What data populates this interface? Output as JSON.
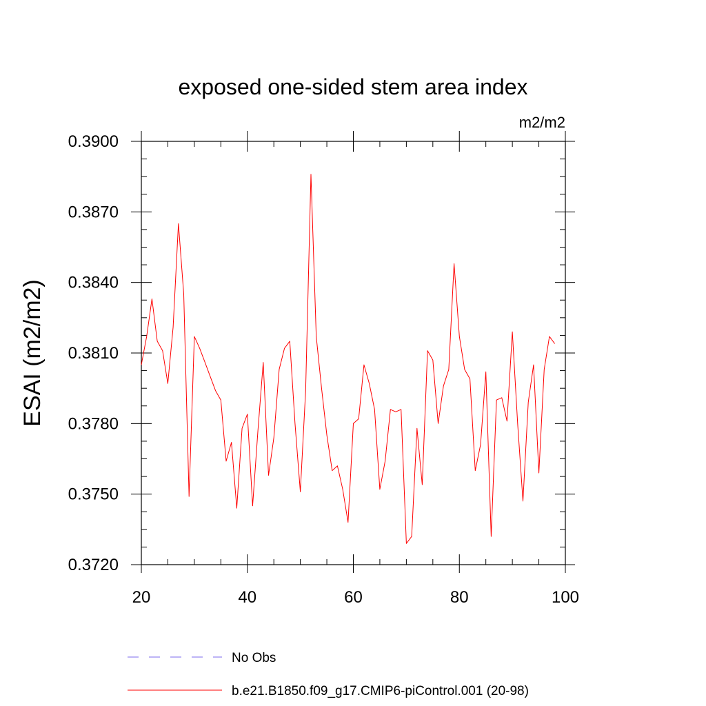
{
  "chart_data": {
    "type": "line",
    "title": "exposed one-sided stem area index",
    "units": "m2/m2",
    "ylabel": "ESAI  (m2/m2)",
    "xlabel": "",
    "xlim": [
      20,
      100
    ],
    "ylim": [
      0.372,
      0.39
    ],
    "xticks": [
      20,
      40,
      60,
      80,
      100
    ],
    "xtick_labels": [
      "20",
      "40",
      "60",
      "80",
      "100"
    ],
    "yticks": [
      0.372,
      0.375,
      0.378,
      0.381,
      0.384,
      0.387,
      0.39
    ],
    "ytick_labels": [
      "0.3720",
      "0.3750",
      "0.3780",
      "0.3810",
      "0.3840",
      "0.3870",
      "0.3900"
    ],
    "grid": false,
    "legend_position": "bottom",
    "series": [
      {
        "name": "No Obs",
        "color": "#7b68ee",
        "dash": "dashed",
        "x": [],
        "y": []
      },
      {
        "name": "b.e21.B1850.f09_g17.CMIP6-piControl.001 (20-98)",
        "color": "#ff0000",
        "dash": "solid",
        "x": [
          20,
          21,
          22,
          23,
          24,
          25,
          26,
          27,
          28,
          29,
          30,
          31,
          32,
          33,
          34,
          35,
          36,
          37,
          38,
          39,
          40,
          41,
          42,
          43,
          44,
          45,
          46,
          47,
          48,
          49,
          50,
          51,
          52,
          53,
          54,
          55,
          56,
          57,
          58,
          59,
          60,
          61,
          62,
          63,
          64,
          65,
          66,
          67,
          68,
          69,
          70,
          71,
          72,
          73,
          74,
          75,
          76,
          77,
          78,
          79,
          80,
          81,
          82,
          83,
          84,
          85,
          86,
          87,
          88,
          89,
          90,
          91,
          92,
          93,
          94,
          95,
          96,
          97,
          98
        ],
        "y": [
          0.3805,
          0.3817,
          0.3833,
          0.3815,
          0.3811,
          0.3797,
          0.3821,
          0.3865,
          0.3835,
          0.3749,
          0.3817,
          0.3812,
          0.3806,
          0.38,
          0.3794,
          0.379,
          0.3764,
          0.3772,
          0.3744,
          0.3778,
          0.3784,
          0.3745,
          0.3777,
          0.3806,
          0.3758,
          0.3774,
          0.3803,
          0.3812,
          0.3815,
          0.378,
          0.3751,
          0.3794,
          0.3886,
          0.3817,
          0.3795,
          0.3775,
          0.376,
          0.3762,
          0.3752,
          0.3738,
          0.378,
          0.3782,
          0.3805,
          0.3797,
          0.3786,
          0.3752,
          0.3764,
          0.3786,
          0.3785,
          0.3786,
          0.3729,
          0.3732,
          0.3778,
          0.3754,
          0.3811,
          0.3807,
          0.378,
          0.3796,
          0.3803,
          0.3848,
          0.3817,
          0.3803,
          0.3799,
          0.376,
          0.3771,
          0.3802,
          0.3732,
          0.379,
          0.3791,
          0.3781,
          0.3819,
          0.378,
          0.3747,
          0.3789,
          0.3805,
          0.3759,
          0.3803,
          0.3817,
          0.3814
        ]
      }
    ]
  }
}
